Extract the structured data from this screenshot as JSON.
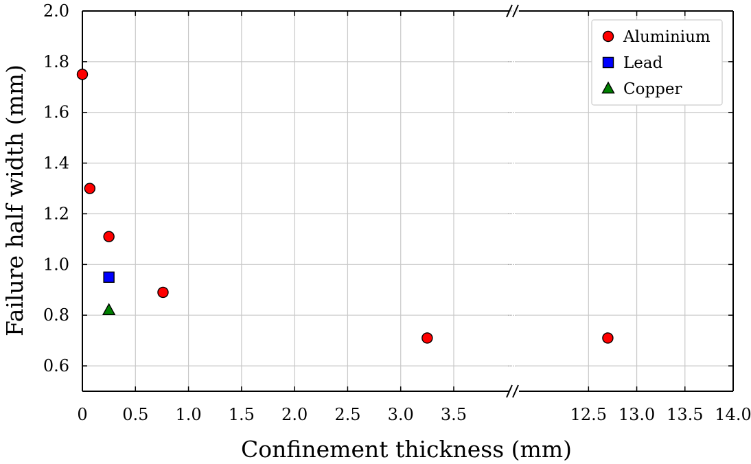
{
  "chart_data": {
    "type": "scatter",
    "broken_x_axis": true,
    "xlabel": "Confinement thickness (mm)",
    "ylabel": "Failure half width (mm)",
    "ylim": [
      0.5,
      2.0
    ],
    "y_ticks": [
      "0.6",
      "0.8",
      "1.0",
      "1.2",
      "1.4",
      "1.6",
      "1.8",
      "2.0"
    ],
    "x_segments": [
      {
        "xlim": [
          0,
          4.05
        ],
        "ticks": [
          "0",
          "0.5",
          "1.0",
          "1.5",
          "2.0",
          "2.5",
          "3.0",
          "3.5"
        ]
      },
      {
        "xlim": [
          11.75,
          14.0
        ],
        "ticks": [
          "12.5",
          "13.0",
          "13.5",
          "14.0"
        ]
      }
    ],
    "grid": true,
    "legend_position": "top-right",
    "series": [
      {
        "name": "Aluminium",
        "marker": "circle",
        "color": "#ff0000",
        "points": [
          [
            0,
            1.75
          ],
          [
            0.07,
            1.3
          ],
          [
            0.25,
            1.11
          ],
          [
            0.76,
            0.89
          ],
          [
            3.25,
            0.71
          ],
          [
            12.7,
            0.71
          ]
        ]
      },
      {
        "name": "Lead",
        "marker": "square",
        "color": "#0000ff",
        "points": [
          [
            0.25,
            0.95
          ]
        ]
      },
      {
        "name": "Copper",
        "marker": "triangle",
        "color": "#008000",
        "points": [
          [
            0.25,
            0.82
          ]
        ]
      }
    ]
  }
}
